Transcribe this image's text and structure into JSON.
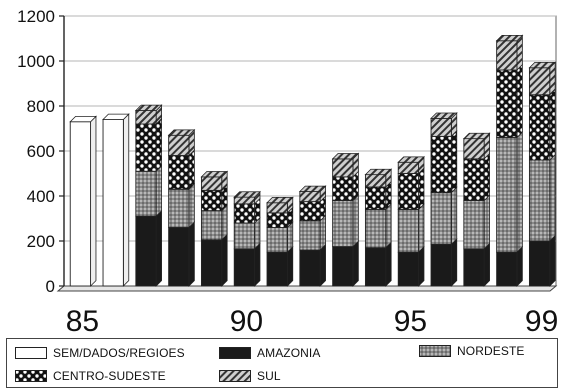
{
  "chart_data": {
    "type": "bar",
    "stacked": true,
    "three_d": true,
    "title": "",
    "xlabel": "",
    "ylabel": "",
    "ylim": [
      0,
      1200
    ],
    "y_ticks": [
      0,
      200,
      400,
      600,
      800,
      1000,
      1200
    ],
    "grid": true,
    "legend_position": "bottom",
    "x_tick_labels": [
      "85",
      "90",
      "95",
      "99"
    ],
    "x_tick_years": [
      1985,
      1990,
      1995,
      1999
    ],
    "years": [
      1985,
      1986,
      1987,
      1988,
      1989,
      1990,
      1991,
      1992,
      1993,
      1994,
      1995,
      1996,
      1997,
      1998,
      1999
    ],
    "series": [
      {
        "name": "SEM/DADOS/REGIOES",
        "pattern": "white",
        "values": [
          730,
          740,
          0,
          0,
          0,
          0,
          0,
          0,
          0,
          0,
          0,
          0,
          0,
          0,
          0
        ]
      },
      {
        "name": "AMAZONIA",
        "pattern": "solid",
        "values": [
          0,
          0,
          310,
          260,
          205,
          165,
          150,
          160,
          175,
          170,
          150,
          185,
          165,
          150,
          200
        ]
      },
      {
        "name": "NORDESTE",
        "pattern": "dots",
        "values": [
          0,
          0,
          200,
          170,
          130,
          115,
          110,
          130,
          205,
          170,
          190,
          230,
          215,
          510,
          360
        ]
      },
      {
        "name": "CENTRO-SUDESTE",
        "pattern": "checker",
        "values": [
          0,
          0,
          210,
          150,
          90,
          85,
          65,
          85,
          105,
          100,
          160,
          250,
          185,
          300,
          290
        ]
      },
      {
        "name": "SUL",
        "pattern": "hatch",
        "values": [
          0,
          0,
          60,
          90,
          60,
          30,
          45,
          45,
          80,
          55,
          50,
          80,
          90,
          130,
          120
        ]
      }
    ]
  },
  "legend": {
    "items": [
      {
        "label": "SEM/DADOS/REGIOES",
        "pattern": "white"
      },
      {
        "label": "AMAZONIA",
        "pattern": "solid"
      },
      {
        "label": "NORDESTE",
        "pattern": "dots"
      },
      {
        "label": "CENTRO-SUDESTE",
        "pattern": "checker"
      },
      {
        "label": "SUL",
        "pattern": "hatch"
      }
    ]
  }
}
